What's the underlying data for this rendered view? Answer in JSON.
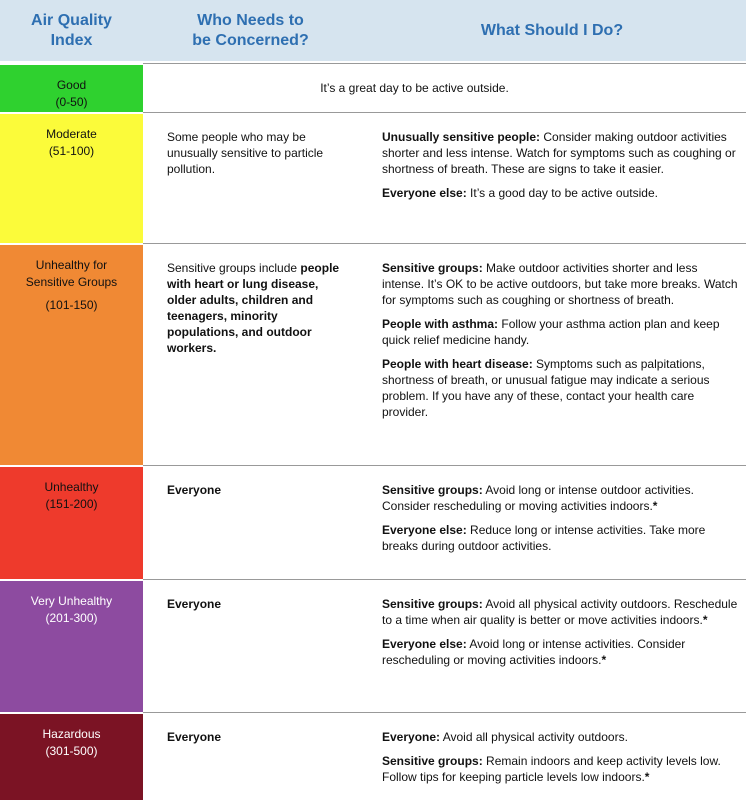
{
  "header": {
    "col1": "Air Quality\nIndex",
    "col2": "Who Needs to\nbe Concerned?",
    "col3": "What Should I Do?"
  },
  "colors": {
    "good": "#2fd12f",
    "moderate": "#fbfb3a",
    "usg": "#f08934",
    "unhealthy": "#ee3a2c",
    "very_unhealthy": "#8d4ba0",
    "hazardous": "#7b1324",
    "header_bg": "#d6e4ef",
    "header_text": "#2e6fb1"
  },
  "rows": [
    {
      "name": "Good",
      "range": "(0-50)",
      "message": "It’s a great day to be active outside."
    },
    {
      "name": "Moderate",
      "range": "(51-100)",
      "who": "Some people who may be unusually sensitive to particle pollution.",
      "what": [
        {
          "label": "Unusually sensitive people:",
          "text": " Consider making outdoor activities shorter and less intense. Watch for symptoms such as coughing or shortness of breath. These are signs to take it easier."
        },
        {
          "label": "Everyone else:",
          "text": " It’s a good day to be active outside."
        }
      ]
    },
    {
      "name_bold": "Unhealthy",
      "name_rest": " for",
      "name_line2": "Sensitive Groups",
      "range": "(101-150)",
      "who_plain": "Sensitive groups include ",
      "who_bold": "people with heart or lung disease, older adults, children and teenagers, minority populations, and outdoor workers.",
      "what": [
        {
          "label": "Sensitive groups:",
          "text": " Make outdoor activities shorter and less intense. It’s OK to be active outdoors, but take more breaks. Watch for symptoms such as coughing or shortness of breath."
        },
        {
          "label": "People with asthma:",
          "text": " Follow your asthma action plan and keep quick relief medicine handy."
        },
        {
          "label": "People with heart disease:",
          "text": " Symptoms such as palpitations, shortness of breath, or unusual fatigue may indicate a serious problem. If you have any of these, contact your health care provider."
        }
      ]
    },
    {
      "name": "Unhealthy",
      "range": "(151-200)",
      "who": "Everyone",
      "what": [
        {
          "label": "Sensitive groups:",
          "text": " Avoid long or intense outdoor activities. Consider rescheduling or moving activities indoors.",
          "star": "*"
        },
        {
          "label": "Everyone else:",
          "text": " Reduce long or intense activities. Take more breaks during outdoor activities."
        }
      ]
    },
    {
      "name": "Very Unhealthy",
      "range": "(201-300)",
      "who": "Everyone",
      "what": [
        {
          "label": "Sensitive groups:",
          "text": " Avoid all physical activity outdoors. Reschedule to a time when air quality is better or move activities indoors.",
          "star": "*"
        },
        {
          "label": "Everyone else:",
          "text": " Avoid long or intense activities. Consider rescheduling or moving activities indoors.",
          "star": "*"
        }
      ]
    },
    {
      "name": "Hazardous",
      "range": "(301-500)",
      "who": "Everyone",
      "what": [
        {
          "label": "Everyone:",
          "text": " Avoid all physical activity outdoors."
        },
        {
          "label": "Sensitive groups:",
          "text": " Remain indoors and keep activity levels low. Follow tips for keeping particle levels low indoors.",
          "star": "*"
        }
      ]
    }
  ]
}
